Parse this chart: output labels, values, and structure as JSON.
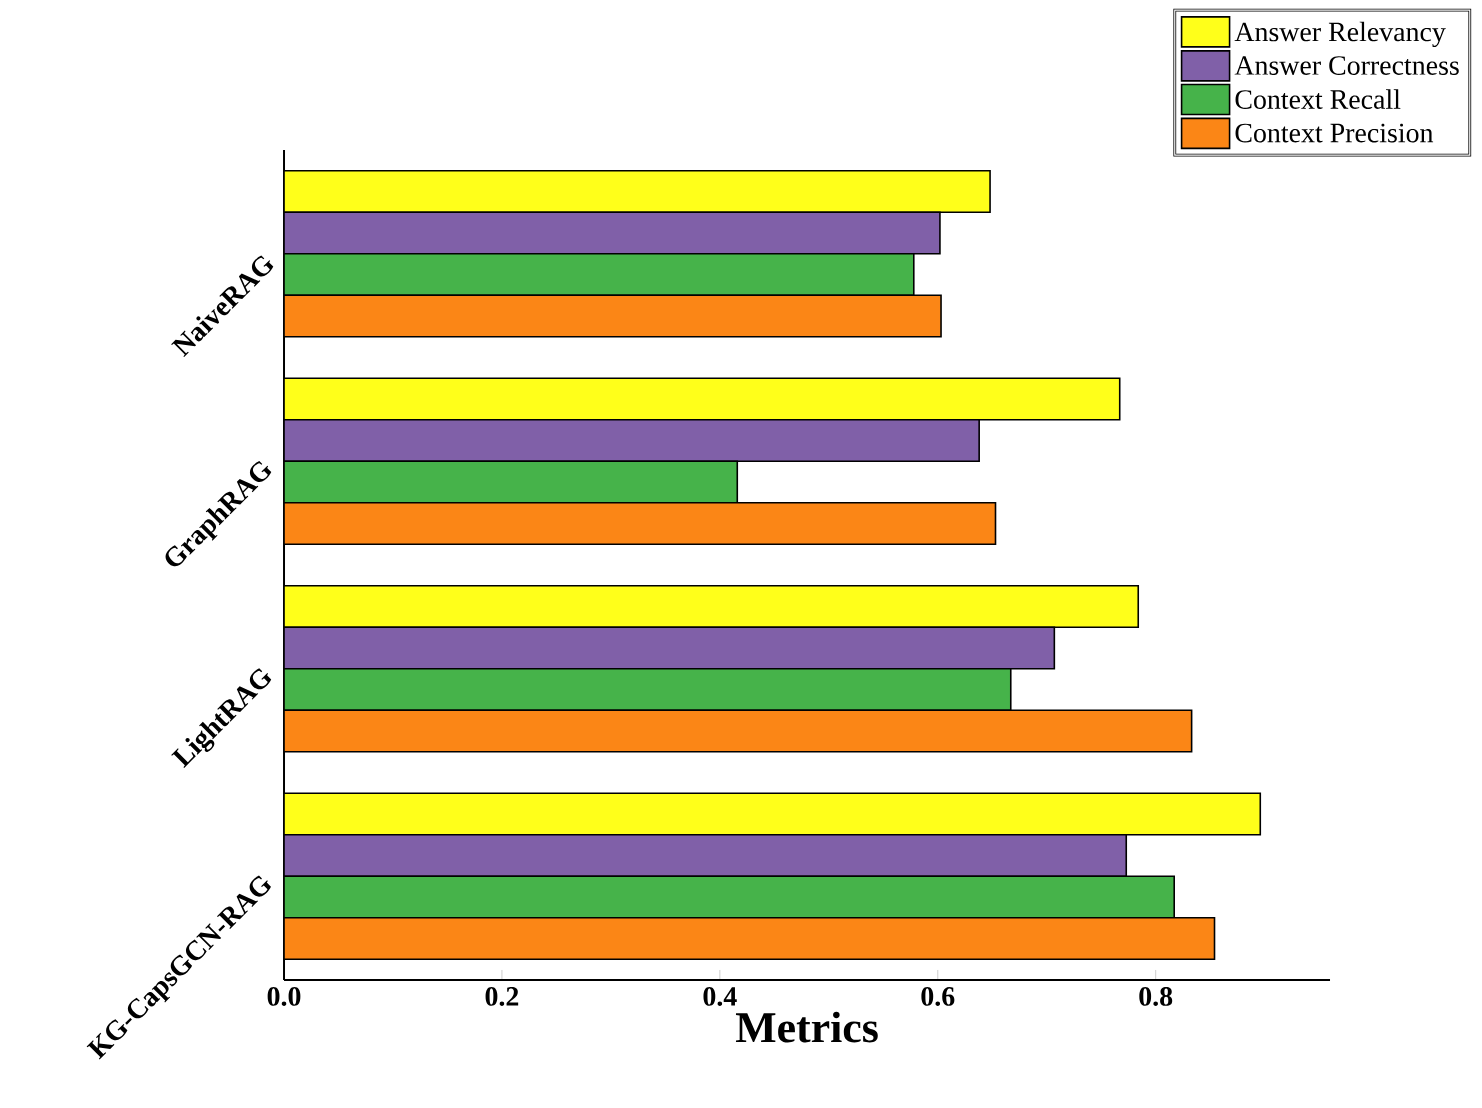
{
  "chart_data": {
    "type": "bar",
    "orientation": "horizontal",
    "xlabel": "Metrics",
    "categories": [
      "NaiveRAG",
      "GraphRAG",
      "LightRAG",
      "KG-CapsGCN-RAG"
    ],
    "series": [
      {
        "name": "Answer Relevancy",
        "color": "#ffff1a",
        "values": [
          0.648,
          0.767,
          0.784,
          0.896
        ]
      },
      {
        "name": "Answer Correctness",
        "color": "#8060a8",
        "values": [
          0.602,
          0.638,
          0.707,
          0.773
        ]
      },
      {
        "name": "Context Recall",
        "color": "#46b34a",
        "values": [
          0.578,
          0.416,
          0.667,
          0.817
        ]
      },
      {
        "name": "Context Precision",
        "color": "#fb8616",
        "values": [
          0.603,
          0.653,
          0.833,
          0.854
        ]
      }
    ],
    "xlim": [
      0,
      0.96
    ],
    "xticks": [
      {
        "value": 0,
        "label": "0.0"
      },
      {
        "value": 0.2,
        "label": "0.2"
      },
      {
        "value": 0.4,
        "label": "0.4"
      },
      {
        "value": 0.6,
        "label": "0.6"
      },
      {
        "value": 0.8,
        "label": "0.8"
      }
    ],
    "legend": "top right",
    "grid": false
  }
}
